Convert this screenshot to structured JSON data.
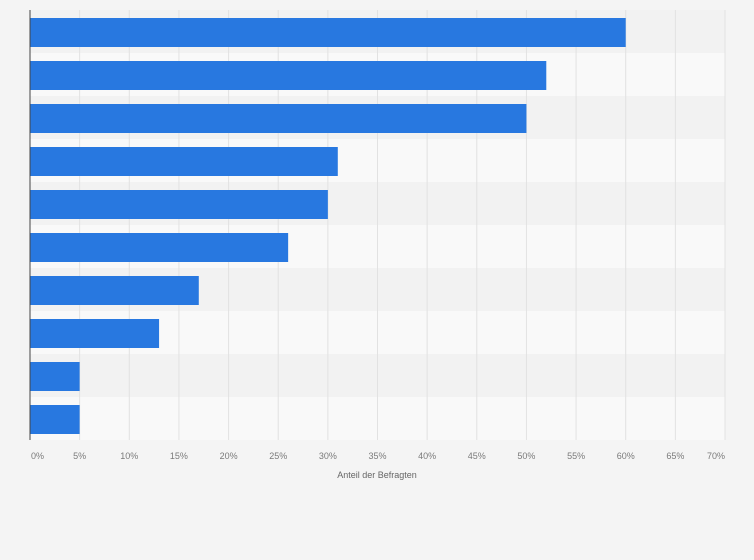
{
  "chart_data": {
    "type": "bar",
    "orientation": "horizontal",
    "categories": [
      "",
      "",
      "",
      "",
      "",
      "",
      "",
      "",
      "",
      ""
    ],
    "values": [
      60,
      52,
      50,
      31,
      30,
      26,
      17,
      13,
      5,
      5
    ],
    "title": "",
    "xlabel": "Anteil der Befragten",
    "ylabel": "",
    "xlim": [
      0,
      70
    ],
    "x_ticks": [
      "0%",
      "5%",
      "10%",
      "15%",
      "20%",
      "25%",
      "30%",
      "35%",
      "40%",
      "45%",
      "50%",
      "55%",
      "60%",
      "65%",
      "70%"
    ],
    "grid": true,
    "bar_color": "#2878e0",
    "plot_background": "#f9f9f9",
    "band_color": "#f2f2f2"
  }
}
